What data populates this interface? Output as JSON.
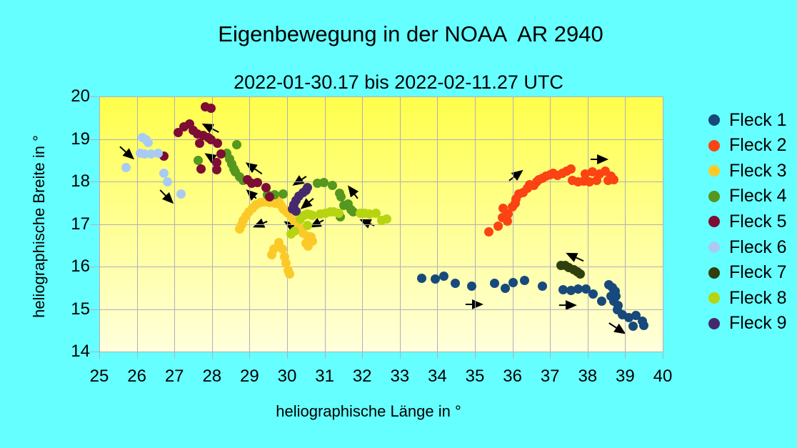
{
  "window": {
    "background": "#66ffff"
  },
  "chart_data": {
    "type": "scatter",
    "title": "Eigenbewegung in der NOAA  AR 2940",
    "subtitle": "2022-01-30.17 bis 2022-02-11.27 UTC",
    "xlabel": "heliographische Länge in °",
    "ylabel": "heliographische Breite in °",
    "xlim": [
      25,
      40
    ],
    "ylim": [
      14,
      20
    ],
    "xticks": [
      25,
      26,
      27,
      28,
      29,
      30,
      31,
      32,
      33,
      34,
      35,
      36,
      37,
      38,
      39,
      40
    ],
    "yticks": [
      20,
      19,
      18,
      17,
      16,
      15,
      14
    ],
    "grid": true,
    "grid_color": "#b0b0ba",
    "plot_bg_gradient": [
      "#ffff4a",
      "#ffffdd"
    ],
    "marker_size": 13,
    "arrow_color": "#000000",
    "legend_position": "right",
    "series": [
      {
        "name": "Fleck 1",
        "color": "#17497c",
        "points": [
          [
            33.58,
            15.72
          ],
          [
            33.94,
            15.7
          ],
          [
            34.18,
            15.77
          ],
          [
            34.47,
            15.61
          ],
          [
            34.91,
            15.53
          ],
          [
            35.53,
            15.6
          ],
          [
            35.81,
            15.49
          ],
          [
            36.02,
            15.63
          ],
          [
            36.32,
            15.67
          ],
          [
            36.8,
            15.53
          ],
          [
            37.34,
            15.46
          ],
          [
            37.55,
            15.44
          ],
          [
            37.74,
            15.47
          ],
          [
            37.96,
            15.47
          ],
          [
            38.15,
            15.35
          ],
          [
            38.38,
            15.18
          ],
          [
            38.56,
            15.57
          ],
          [
            38.66,
            15.5
          ],
          [
            38.74,
            15.42
          ],
          [
            38.62,
            15.3
          ],
          [
            38.76,
            15.3
          ],
          [
            38.7,
            15.18
          ],
          [
            38.82,
            15.08
          ],
          [
            38.8,
            14.99
          ],
          [
            38.93,
            14.87
          ],
          [
            39.09,
            14.79
          ],
          [
            39.28,
            14.85
          ],
          [
            39.22,
            14.6
          ],
          [
            39.45,
            14.72
          ],
          [
            39.5,
            14.62
          ]
        ]
      },
      {
        "name": "Fleck 2",
        "color": "#fb4313",
        "points": [
          [
            35.37,
            16.82
          ],
          [
            35.62,
            16.95
          ],
          [
            35.74,
            17.15
          ],
          [
            35.86,
            17.07
          ],
          [
            35.76,
            17.37
          ],
          [
            35.89,
            17.23
          ],
          [
            36.0,
            17.4
          ],
          [
            36.07,
            17.49
          ],
          [
            36.1,
            17.59
          ],
          [
            36.17,
            17.7
          ],
          [
            36.28,
            17.74
          ],
          [
            36.4,
            17.84
          ],
          [
            36.46,
            17.93
          ],
          [
            36.56,
            17.91
          ],
          [
            36.64,
            18.0
          ],
          [
            36.7,
            18.05
          ],
          [
            36.79,
            18.08
          ],
          [
            36.89,
            18.12
          ],
          [
            37.0,
            18.16
          ],
          [
            37.08,
            18.19
          ],
          [
            37.2,
            18.14
          ],
          [
            37.32,
            18.2
          ],
          [
            37.45,
            18.25
          ],
          [
            37.56,
            18.3
          ],
          [
            37.6,
            18.02
          ],
          [
            37.75,
            17.99
          ],
          [
            37.9,
            18.01
          ],
          [
            37.94,
            18.18
          ],
          [
            38.05,
            18.0
          ],
          [
            38.13,
            18.22
          ],
          [
            38.25,
            18.03
          ],
          [
            38.32,
            18.18
          ],
          [
            38.47,
            18.25
          ],
          [
            38.55,
            18.03
          ],
          [
            38.62,
            18.12
          ],
          [
            38.7,
            18.05
          ]
        ]
      },
      {
        "name": "Fleck 3",
        "color": "#fcca28",
        "points": [
          [
            28.74,
            16.88
          ],
          [
            28.79,
            16.98
          ],
          [
            28.83,
            17.08
          ],
          [
            28.9,
            17.18
          ],
          [
            28.99,
            17.28
          ],
          [
            29.08,
            17.37
          ],
          [
            29.18,
            17.45
          ],
          [
            29.29,
            17.5
          ],
          [
            29.4,
            17.52
          ],
          [
            29.54,
            17.5
          ],
          [
            29.69,
            17.48
          ],
          [
            29.78,
            17.52
          ],
          [
            29.84,
            17.43
          ],
          [
            29.9,
            17.35
          ],
          [
            29.97,
            17.3
          ],
          [
            30.03,
            17.26
          ],
          [
            30.13,
            17.17
          ],
          [
            30.19,
            17.09
          ],
          [
            30.29,
            17.03
          ],
          [
            30.35,
            16.87
          ],
          [
            30.42,
            16.78
          ],
          [
            30.55,
            16.72
          ],
          [
            30.64,
            16.7
          ],
          [
            30.67,
            16.6
          ],
          [
            30.5,
            16.55
          ],
          [
            30.56,
            16.48
          ],
          [
            29.78,
            16.56
          ],
          [
            29.65,
            16.42
          ],
          [
            29.88,
            16.42
          ],
          [
            29.59,
            16.28
          ],
          [
            29.94,
            16.22
          ],
          [
            29.97,
            16.08
          ],
          [
            30.03,
            15.91
          ],
          [
            30.07,
            15.82
          ]
        ]
      },
      {
        "name": "Fleck 4",
        "color": "#55971f",
        "points": [
          [
            27.64,
            18.5
          ],
          [
            28.66,
            18.86
          ],
          [
            28.4,
            18.67
          ],
          [
            28.47,
            18.53
          ],
          [
            28.53,
            18.42
          ],
          [
            28.59,
            18.3
          ],
          [
            28.62,
            18.22
          ],
          [
            28.74,
            18.11
          ],
          [
            28.84,
            18.03
          ],
          [
            29.47,
            17.69
          ],
          [
            29.66,
            17.69
          ],
          [
            29.89,
            17.71
          ],
          [
            30.81,
            17.96
          ],
          [
            30.97,
            17.98
          ],
          [
            31.2,
            17.91
          ],
          [
            31.39,
            17.73
          ],
          [
            31.43,
            17.64
          ],
          [
            31.52,
            17.44
          ],
          [
            31.62,
            17.47
          ],
          [
            31.7,
            17.34
          ],
          [
            31.75,
            17.29
          ],
          [
            31.42,
            17.16
          ]
        ]
      },
      {
        "name": "Fleck 5",
        "color": "#7d0d34",
        "points": [
          [
            27.83,
            19.76
          ],
          [
            27.98,
            19.73
          ],
          [
            27.41,
            19.35
          ],
          [
            27.26,
            19.29
          ],
          [
            27.5,
            19.21
          ],
          [
            27.1,
            19.15
          ],
          [
            27.62,
            19.11
          ],
          [
            27.76,
            19.08
          ],
          [
            27.9,
            19.04
          ],
          [
            27.98,
            18.98
          ],
          [
            28.15,
            18.9
          ],
          [
            27.67,
            18.9
          ],
          [
            28.24,
            18.64
          ],
          [
            26.73,
            18.6
          ],
          [
            28.12,
            18.45
          ],
          [
            27.71,
            18.3
          ],
          [
            28.12,
            18.28
          ],
          [
            28.94,
            18.04
          ],
          [
            29.05,
            17.95
          ],
          [
            29.22,
            17.98
          ],
          [
            29.43,
            17.85
          ],
          [
            29.53,
            17.64
          ]
        ]
      },
      {
        "name": "Fleck 6",
        "color": "#a9cbf3",
        "points": [
          [
            26.15,
            19.04
          ],
          [
            26.24,
            18.98
          ],
          [
            26.31,
            18.92
          ],
          [
            26.09,
            18.67
          ],
          [
            26.21,
            18.64
          ],
          [
            26.37,
            18.64
          ],
          [
            26.56,
            18.67
          ],
          [
            25.71,
            18.33
          ],
          [
            26.72,
            18.19
          ],
          [
            26.82,
            17.99
          ],
          [
            27.17,
            17.71
          ]
        ]
      },
      {
        "name": "Fleck 7",
        "color": "#2f400f",
        "points": [
          [
            37.29,
            16.03
          ],
          [
            37.4,
            16.02
          ],
          [
            37.5,
            15.97
          ],
          [
            37.63,
            15.92
          ],
          [
            37.72,
            15.87
          ],
          [
            37.8,
            15.83
          ]
        ]
      },
      {
        "name": "Fleck 8",
        "color": "#b6d411",
        "points": [
          [
            30.1,
            16.77
          ],
          [
            30.2,
            16.83
          ],
          [
            30.54,
            16.97
          ],
          [
            30.35,
            17.12
          ],
          [
            30.45,
            17.2
          ],
          [
            30.54,
            17.23
          ],
          [
            30.62,
            17.22
          ],
          [
            30.67,
            17.2
          ],
          [
            30.89,
            17.23
          ],
          [
            31.02,
            17.26
          ],
          [
            31.15,
            17.28
          ],
          [
            31.24,
            17.29
          ],
          [
            31.37,
            17.26
          ],
          [
            31.94,
            17.26
          ],
          [
            32.07,
            17.26
          ],
          [
            32.2,
            17.23
          ],
          [
            32.36,
            17.26
          ],
          [
            32.51,
            17.09
          ],
          [
            32.65,
            17.11
          ]
        ]
      },
      {
        "name": "Fleck 9",
        "color": "#46286f",
        "points": [
          [
            30.55,
            17.86
          ],
          [
            30.51,
            17.79
          ],
          [
            30.42,
            17.74
          ],
          [
            30.32,
            17.66
          ],
          [
            30.23,
            17.55
          ],
          [
            30.18,
            17.46
          ],
          [
            30.15,
            17.36
          ],
          [
            30.23,
            17.31
          ]
        ]
      }
    ],
    "arrows": [
      [
        25.55,
        18.82,
        25.89,
        18.55
      ],
      [
        26.62,
        17.8,
        26.94,
        17.51
      ],
      [
        28.18,
        19.16,
        27.78,
        19.34
      ],
      [
        28.21,
        18.44,
        27.85,
        18.64
      ],
      [
        29.33,
        18.18,
        28.94,
        18.42
      ],
      [
        30.51,
        18.12,
        30.19,
        17.93
      ],
      [
        29.18,
        17.6,
        28.95,
        17.78
      ],
      [
        30.7,
        17.6,
        30.4,
        17.38
      ],
      [
        29.47,
        17.06,
        29.14,
        16.94
      ],
      [
        30.25,
        16.89,
        29.96,
        17.04
      ],
      [
        30.97,
        17.09,
        30.65,
        16.94
      ],
      [
        31.88,
        17.6,
        31.65,
        17.87
      ],
      [
        32.32,
        16.96,
        31.98,
        17.09
      ],
      [
        35.91,
        18.02,
        36.24,
        18.24
      ],
      [
        38.08,
        18.52,
        38.5,
        18.52
      ],
      [
        34.75,
        15.11,
        35.17,
        15.11
      ],
      [
        37.89,
        16.13,
        37.47,
        16.3
      ],
      [
        37.24,
        15.09,
        37.66,
        15.09
      ],
      [
        38.57,
        14.67,
        38.97,
        14.44
      ]
    ]
  }
}
